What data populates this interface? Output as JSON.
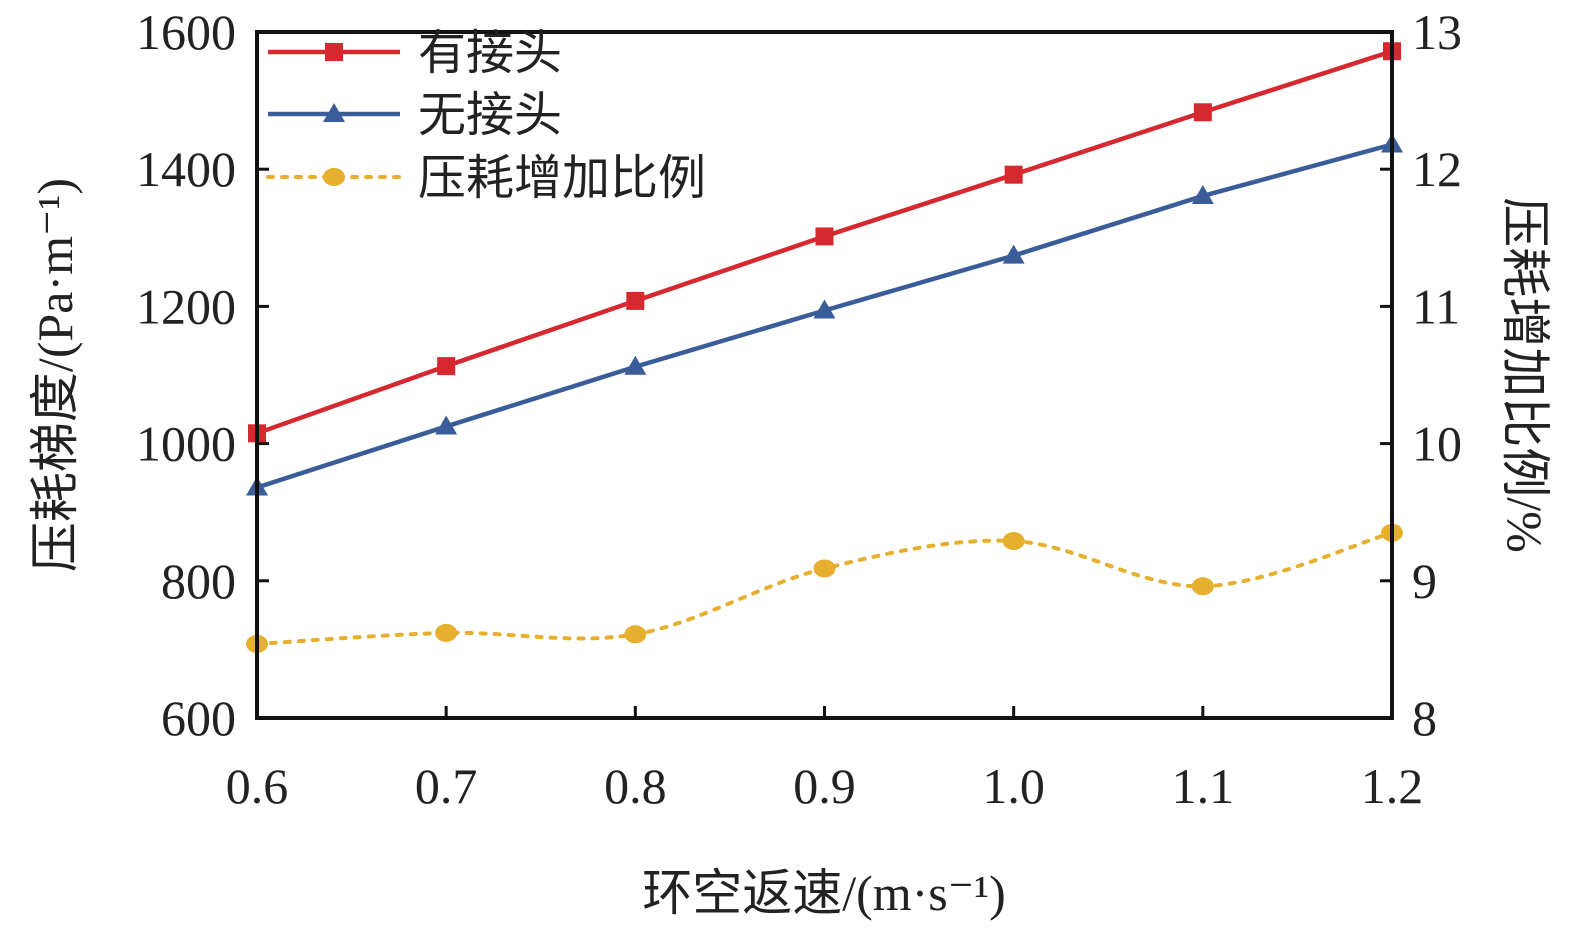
{
  "chart_data": {
    "type": "line",
    "x": [
      0.6,
      0.7,
      0.8,
      0.9,
      1.0,
      1.1,
      1.2
    ],
    "x_tick_labels": [
      "0.6",
      "0.7",
      "0.8",
      "0.9",
      "1.0",
      "1.1",
      "1.2"
    ],
    "xlim": [
      0.6,
      1.2
    ],
    "xlabel": "环空返速/(m·s⁻¹)",
    "ylabel_left": "压耗梯度/(Pa·m⁻¹)",
    "ylim_left": [
      600,
      1600
    ],
    "y_ticks_left": [
      600,
      800,
      1000,
      1200,
      1400,
      1600
    ],
    "ylabel_right": "压耗增加比例/%",
    "ylim_right": [
      8,
      13
    ],
    "y_ticks_right": [
      8,
      9,
      10,
      11,
      12,
      13
    ],
    "grid": false,
    "legend_position": "top-left",
    "series": [
      {
        "name": "有接头",
        "axis": "left",
        "marker": "square",
        "line_style": "solid",
        "color": "#d6282f",
        "values": [
          1015,
          1113,
          1208,
          1302,
          1392,
          1483,
          1572
        ]
      },
      {
        "name": "无接头",
        "axis": "left",
        "marker": "triangle",
        "line_style": "solid",
        "color": "#3a5d99",
        "values": [
          936,
          1025,
          1112,
          1194,
          1274,
          1361,
          1436
        ]
      },
      {
        "name": "压耗增加比例",
        "axis": "right",
        "marker": "circle",
        "line_style": "dotted",
        "color": "#e6b02e",
        "values": [
          8.54,
          8.62,
          8.61,
          9.09,
          9.29,
          8.96,
          9.35
        ]
      }
    ]
  }
}
